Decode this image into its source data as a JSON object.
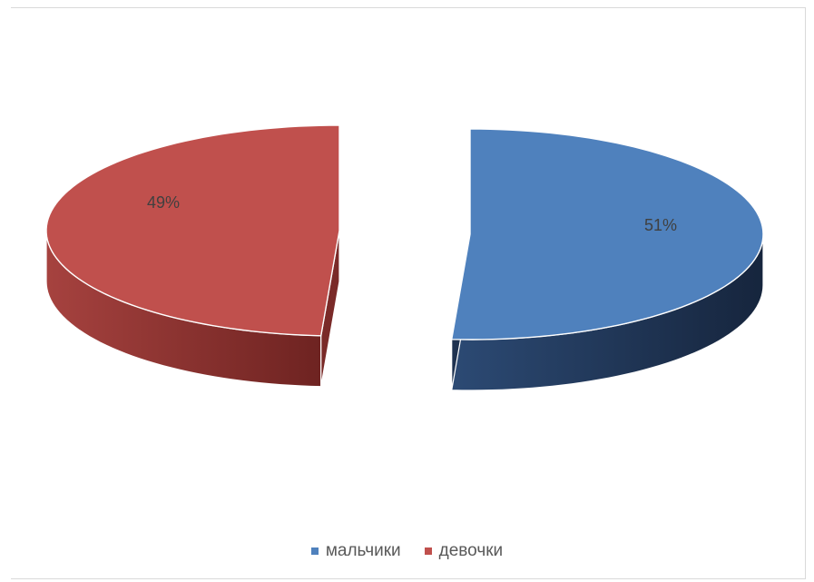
{
  "chart_data": {
    "type": "pie",
    "style": "3d-exploded",
    "categories": [
      "мальчики",
      "девочки"
    ],
    "values": [
      51,
      49
    ],
    "data_labels": [
      "51%",
      "49%"
    ],
    "colors": [
      "#4f81bd",
      "#c0504d"
    ],
    "side_colors": [
      "#23395d",
      "#8b2b29"
    ],
    "legend": {
      "position": "bottom",
      "items": [
        {
          "label": "мальчики",
          "color": "#4f81bd"
        },
        {
          "label": "девочки",
          "color": "#c0504d"
        }
      ]
    }
  }
}
